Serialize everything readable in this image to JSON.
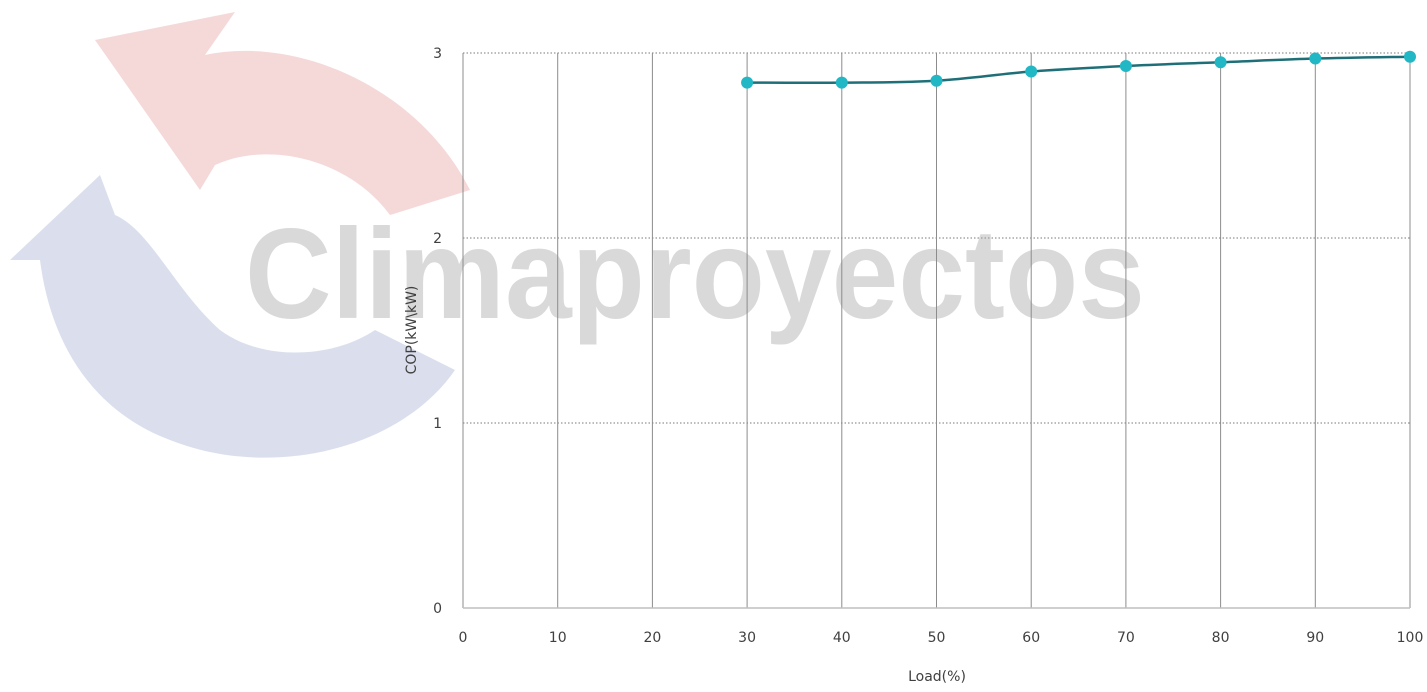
{
  "watermark": {
    "text": "Climaproyectos",
    "colors": {
      "red": "#e8a3a3",
      "blue": "#a9b3d3",
      "text": "#c4c4c4"
    }
  },
  "chart_data": {
    "type": "line",
    "title": "",
    "xlabel": "Load(%)",
    "ylabel": "COP(kW\\kW)",
    "xlim": [
      0,
      100
    ],
    "ylim": [
      0,
      3
    ],
    "x_ticks": [
      "0",
      "10",
      "20",
      "30",
      "40",
      "50",
      "60",
      "70",
      "80",
      "90",
      "100"
    ],
    "y_ticks": [
      "0",
      "1",
      "2",
      "3"
    ],
    "grid": {
      "vertical": "solid",
      "horizontal": "dotted"
    },
    "series": [
      {
        "color": "#1f6f78",
        "marker_color": "#22b7c4",
        "x": [
          30,
          40,
          50,
          60,
          70,
          80,
          90,
          100
        ],
        "values": [
          2.84,
          2.84,
          2.85,
          2.9,
          2.93,
          2.95,
          2.97,
          2.98
        ]
      }
    ]
  }
}
